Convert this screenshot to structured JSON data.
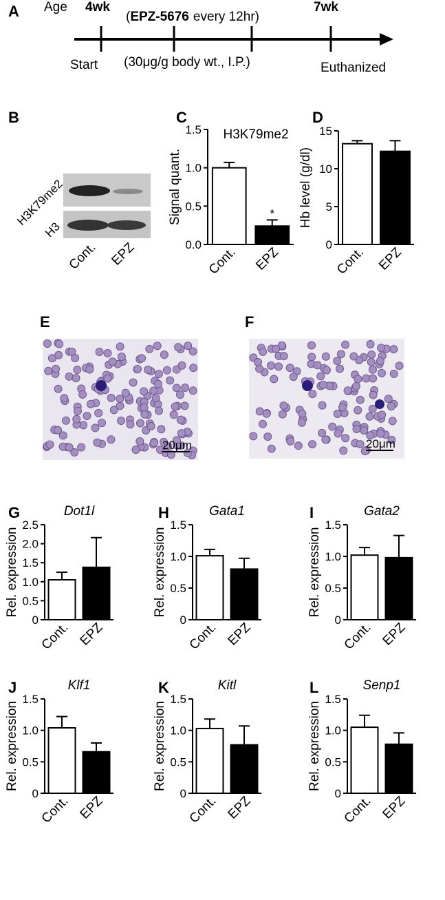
{
  "timeline": {
    "label": "A",
    "age": "Age",
    "start_age": "4wk",
    "end_age": "7wk",
    "treatment": [
      "(",
      "EPZ-5676",
      "every 12hr)"
    ],
    "start": "Start",
    "dose": "(30μg/g body wt., I.P.)",
    "end": "Euthanized"
  },
  "blot": {
    "label": "B",
    "rows": [
      "H3K79me2",
      "H3"
    ],
    "lanes": [
      "Cont.",
      "EPZ"
    ]
  },
  "micrographs": [
    {
      "label": "E",
      "scale_bar": "20μm"
    },
    {
      "label": "F",
      "scale_bar": "20μm"
    }
  ],
  "chart_data": [
    {
      "type": "bar",
      "panel": "C",
      "title": "H3K79me2",
      "ylabel": "Signal quant.",
      "categories": [
        "Cont.",
        "EPZ"
      ],
      "values": [
        1.0,
        0.24
      ],
      "errors": [
        0.07,
        0.08
      ],
      "colors": [
        "#ffffff",
        "#000000"
      ],
      "annotations": [
        null,
        "*"
      ],
      "ylim": [
        0,
        1.5
      ],
      "yticks": [
        {
          "value": 0,
          "label": "0.0"
        },
        0.5,
        {
          "value": 1,
          "label": "1.0"
        },
        1.5
      ]
    },
    {
      "type": "bar",
      "panel": "D",
      "ylabel": "Hb level (g/dl)",
      "categories": [
        "Cont.",
        "EPZ"
      ],
      "values": [
        13.3,
        12.3
      ],
      "errors": [
        0.4,
        1.4
      ],
      "colors": [
        "#ffffff",
        "#000000"
      ],
      "ylim": [
        0,
        15
      ],
      "yticks": [
        0,
        5,
        10,
        15
      ]
    },
    {
      "type": "bar",
      "panel": "G",
      "title": "Dot1l",
      "ylabel": "Rel. expression",
      "categories": [
        "Cont.",
        "EPZ"
      ],
      "values": [
        1.05,
        1.38
      ],
      "errors": [
        0.2,
        0.78
      ],
      "colors": [
        "#ffffff",
        "#000000"
      ],
      "ylim": [
        0,
        2.5
      ],
      "yticks": [
        0,
        0.5,
        {
          "value": 1,
          "label": "1.0"
        },
        1.5,
        {
          "value": 2,
          "label": "2.0"
        },
        2.5
      ]
    },
    {
      "type": "bar",
      "panel": "H",
      "title": "Gata1",
      "ylabel": "Rel. expression",
      "categories": [
        "Cont.",
        "EPZ"
      ],
      "values": [
        1.01,
        0.8
      ],
      "errors": [
        0.1,
        0.17
      ],
      "colors": [
        "#ffffff",
        "#000000"
      ],
      "ylim": [
        0,
        1.5
      ],
      "yticks": [
        0,
        0.5,
        {
          "value": 1,
          "label": "1.0"
        },
        1.5
      ]
    },
    {
      "type": "bar",
      "panel": "I",
      "title": "Gata2",
      "ylabel": "Rel. expression",
      "categories": [
        "Cont.",
        "EPZ"
      ],
      "values": [
        1.02,
        0.98
      ],
      "errors": [
        0.12,
        0.35
      ],
      "colors": [
        "#ffffff",
        "#000000"
      ],
      "ylim": [
        0,
        1.5
      ],
      "yticks": [
        0,
        0.5,
        {
          "value": 1,
          "label": "1.0"
        },
        1.5
      ]
    },
    {
      "type": "bar",
      "panel": "J",
      "title": "Klf1",
      "ylabel": "Rel. expression",
      "categories": [
        "Cont.",
        "EPZ"
      ],
      "values": [
        1.04,
        0.66
      ],
      "errors": [
        0.18,
        0.14
      ],
      "colors": [
        "#ffffff",
        "#000000"
      ],
      "ylim": [
        0,
        1.5
      ],
      "yticks": [
        0,
        0.5,
        {
          "value": 1,
          "label": "1.0"
        },
        1.5
      ]
    },
    {
      "type": "bar",
      "panel": "K",
      "title": "Kitl",
      "ylabel": "Rel. expression",
      "categories": [
        "Cont.",
        "EPZ"
      ],
      "values": [
        1.03,
        0.77
      ],
      "errors": [
        0.15,
        0.3
      ],
      "colors": [
        "#ffffff",
        "#000000"
      ],
      "ylim": [
        0,
        1.5
      ],
      "yticks": [
        0,
        0.5,
        {
          "value": 1,
          "label": "1.0"
        },
        1.5
      ]
    },
    {
      "type": "bar",
      "panel": "L",
      "title": "Senp1",
      "ylabel": "Rel. expression",
      "categories": [
        "Cont.",
        "EPZ"
      ],
      "values": [
        1.05,
        0.78
      ],
      "errors": [
        0.19,
        0.18
      ],
      "colors": [
        "#ffffff",
        "#000000"
      ],
      "ylim": [
        0,
        1.5
      ],
      "yticks": [
        0,
        0.5,
        {
          "value": 1,
          "label": "1.0"
        },
        1.5
      ]
    }
  ]
}
